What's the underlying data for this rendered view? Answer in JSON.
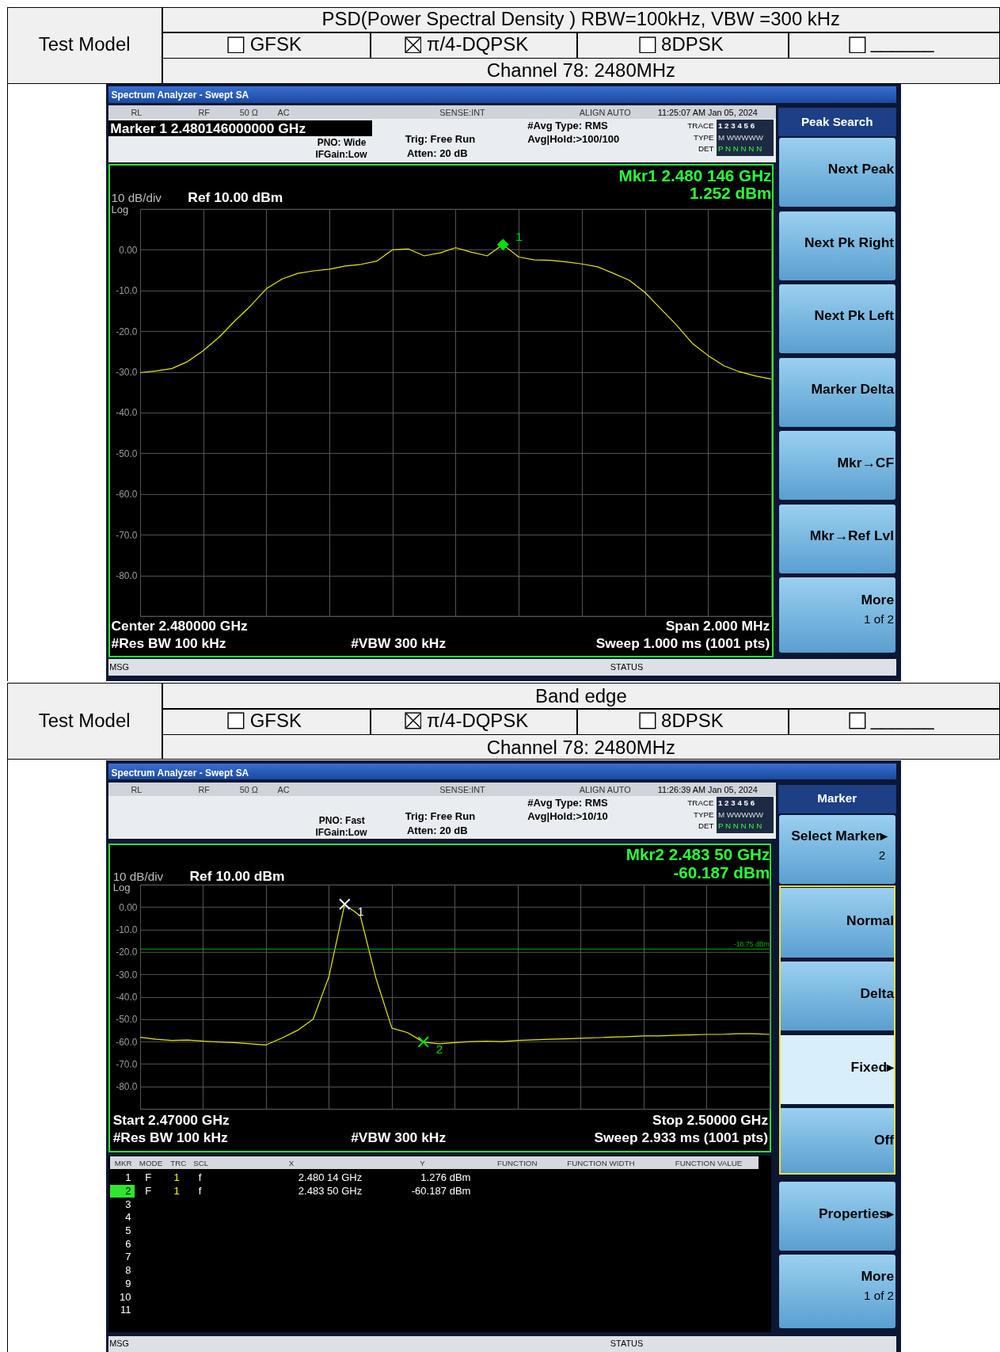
{
  "chart_data": [
    {
      "type": "line",
      "title": "PSD(Power Spectral Density ) RBW=100kHz, VBW =300 kHz",
      "categories": [
        null,
        null,
        null,
        null,
        null,
        null,
        null,
        null,
        null,
        null,
        null,
        null,
        null,
        null,
        null,
        null,
        null,
        null,
        null,
        null,
        null,
        null,
        null,
        null,
        null,
        null,
        null,
        null,
        null,
        null,
        null,
        null,
        null,
        null,
        null,
        null,
        null,
        null,
        null,
        null,
        null
      ],
      "series": [
        {
          "color": "#e8e800",
          "values": [
            -30.2,
            -29.8,
            -29.2,
            -27.5,
            -24.8,
            -21.5,
            -17.5,
            -13.8,
            -9.6,
            -7.2,
            -5.8,
            -5.2,
            -4.8,
            -4,
            -3.6,
            -2.8,
            0,
            0.2,
            -1.5,
            -0.8,
            0.5,
            -0.6,
            -1.5,
            1.25,
            -1.8,
            -2.5,
            -2.6,
            -3,
            -3.5,
            -4.2,
            -5.8,
            -7.5,
            -10.5,
            -14.5,
            -18.5,
            -23,
            -26,
            -28.5,
            -30,
            -31,
            -31.8
          ]
        },
        {
          "name": "1",
          "type": "scatter",
          "marker": "diamond",
          "color": "#00e000",
          "values": [
            null,
            null,
            null,
            null,
            null,
            null,
            null,
            null,
            null,
            null,
            null,
            null,
            null,
            null,
            null,
            null,
            null,
            null,
            null,
            null,
            null,
            null,
            null,
            1.252,
            null,
            null,
            null,
            null,
            null,
            null,
            null,
            null,
            null,
            null,
            null,
            null,
            null,
            null,
            null,
            null,
            null
          ]
        }
      ],
      "ylim": [
        -90,
        10
      ],
      "yticks": [
        {
          "value": -90,
          "label": null
        },
        {
          "value": -80,
          "label": "-80.0"
        },
        {
          "value": -70,
          "label": "-70.0"
        },
        {
          "value": -60,
          "label": "-60.0"
        },
        {
          "value": -50,
          "label": "-50.0"
        },
        {
          "value": -40,
          "label": "-40.0"
        },
        {
          "value": -30,
          "label": "-30.0"
        },
        {
          "value": -20,
          "label": "-20.0"
        },
        {
          "value": -10,
          "label": "-10.0"
        },
        {
          "value": 0,
          "label": "0.00"
        },
        {
          "value": 10,
          "label": null
        }
      ],
      "grid": true,
      "tick_labels": "y",
      "annotations": [
        "Test Model",
        "GFSK",
        "π/4-DQPSK",
        "8DPSK",
        "______",
        "Channel 78: 2480MHz",
        "Spectrum Analyzer - Swept SA",
        "RL",
        "RF",
        "50 Ω",
        "AC",
        "SENSE:INT",
        "ALIGN AUTO",
        "11:25:07 AM Jan 05, 2024",
        "Marker 1 2.480146000000 GHz",
        "PNO: Wide",
        "IFGain:Low",
        "Trig: Free Run",
        "Atten: 20 dB",
        "#Avg Type: RMS",
        "Avg|Hold:>100/100",
        "TRACE",
        "1 2 3 4 5 6",
        "TYPE",
        "M WWWWW",
        "DET",
        "P N N N N N",
        "Mkr1 2.480 146 GHz",
        "1.252 dBm",
        "10 dB/div",
        "Ref 10.00 dBm",
        "Log",
        "Center 2.480000 GHz",
        "Span 2.000 MHz",
        "#Res BW 100 kHz",
        "#VBW 300 kHz",
        "Sweep  1.000 ms (1001 pts)",
        "MSG",
        "STATUS",
        "Peak Search",
        "Next Peak",
        "Next Pk Right",
        "Next Pk Left",
        "Marker Delta",
        "Mkr→CF",
        "Mkr→Ref Lvl",
        "More",
        "1 of 2"
      ]
    },
    {
      "type": "line",
      "title": "Band edge",
      "categories": [
        null,
        null,
        null,
        null,
        null,
        null,
        null,
        null,
        null,
        null,
        null,
        null,
        null,
        null,
        null,
        null,
        null,
        null,
        null,
        null,
        null,
        null,
        null,
        null,
        null,
        null,
        null,
        null,
        null,
        null,
        null,
        null,
        null,
        null,
        null,
        null,
        null,
        null,
        null,
        null,
        null
      ],
      "series": [
        {
          "color": "#e8e800",
          "values": [
            -58.1,
            -59,
            -59.5,
            -59.3,
            -59.8,
            -60.2,
            -60.5,
            -61,
            -61.5,
            -58.5,
            -55,
            -50,
            -31,
            1.2,
            -4,
            -32,
            -54,
            -56,
            -60.2,
            -61,
            -60.5,
            -60,
            -59.8,
            -60,
            -59.5,
            -59.2,
            -59,
            -58.8,
            -58.5,
            -58.3,
            -58,
            -57.8,
            -57.5,
            -57.5,
            -57.2,
            -57,
            -56.8,
            -56.8,
            -56.5,
            -56.5,
            -56.8
          ]
        },
        {
          "name": "1",
          "type": "scatter",
          "marker": "cross",
          "color": "#ffffff",
          "values": [
            null,
            null,
            null,
            null,
            null,
            null,
            null,
            null,
            null,
            null,
            null,
            null,
            null,
            1.276,
            null,
            null,
            null,
            null,
            null,
            null,
            null,
            null,
            null,
            null,
            null,
            null,
            null,
            null,
            null,
            null,
            null,
            null,
            null,
            null,
            null,
            null,
            null,
            null,
            null,
            null,
            null
          ]
        },
        {
          "name": "2",
          "type": "scatter",
          "marker": "cross",
          "color": "#00e000",
          "values": [
            null,
            null,
            null,
            null,
            null,
            null,
            null,
            null,
            null,
            null,
            null,
            null,
            null,
            null,
            null,
            null,
            null,
            null,
            -60.187,
            null,
            null,
            null,
            null,
            null,
            null,
            null,
            null,
            null,
            null,
            null,
            null,
            null,
            null,
            null,
            null,
            null,
            null,
            null,
            null,
            null,
            null
          ]
        }
      ],
      "ylim": [
        -90,
        10
      ],
      "yticks": [
        {
          "value": -90,
          "label": null
        },
        {
          "value": -80,
          "label": "-80.0"
        },
        {
          "value": -70,
          "label": "-70.0"
        },
        {
          "value": -60,
          "label": "-60.0"
        },
        {
          "value": -50,
          "label": "-50.0"
        },
        {
          "value": -40,
          "label": "-40.0"
        },
        {
          "value": -30,
          "label": "-30.0"
        },
        {
          "value": -20,
          "label": "-20.0"
        },
        {
          "value": -10,
          "label": "-10.0"
        },
        {
          "value": 0,
          "label": "0.00"
        },
        {
          "value": 10,
          "label": null
        }
      ],
      "grid": true,
      "tick_labels": "y",
      "ref_lines": [
        {
          "axis": "y",
          "value": -18.75,
          "label": "-18.75 dBm",
          "color": "#00b000"
        }
      ],
      "annotations": [
        "Test Model",
        "GFSK",
        "π/4-DQPSK",
        "8DPSK",
        "______",
        "Channel 78: 2480MHz",
        "Spectrum Analyzer - Swept SA",
        "RL",
        "RF",
        "50 Ω",
        "AC",
        "SENSE:INT",
        "ALIGN AUTO",
        "11:26:39 AM Jan 05, 2024",
        "PNO: Fast",
        "IFGain:Low",
        "Trig: Free Run",
        "Atten: 20 dB",
        "#Avg Type: RMS",
        "Avg|Hold:>10/10",
        "TRACE",
        "1 2 3 4 5 6",
        "TYPE",
        "M WWWWW",
        "DET",
        "P N N N N N",
        "Mkr2 2.483 50 GHz",
        "-60.187 dBm",
        "10 dB/div",
        "Ref 10.00 dBm",
        "Log",
        "Start 2.47000 GHz",
        "Stop 2.50000 GHz",
        "#Res BW 100 kHz",
        "#VBW 300 kHz",
        "Sweep  2.933 ms (1001 pts)",
        "MKR",
        "MODE",
        "TRC",
        "SCL",
        "X",
        "Y",
        "FUNCTION",
        "FUNCTION WIDTH",
        "FUNCTION VALUE",
        "1",
        "F",
        "1",
        "f",
        "2.480 14 GHz",
        "1.276 dBm",
        "2",
        "F",
        "1",
        "f",
        "2.483 50 GHz",
        "-60.187 dBm",
        "3",
        "4",
        "5",
        "6",
        "7",
        "8",
        "9",
        "10",
        "11",
        "MSG",
        "STATUS",
        "Marker",
        "Select Marker▸",
        "2",
        "Normal",
        "Delta",
        "Fixed▸",
        "Off",
        "Properties▸",
        "More",
        "1 of 2"
      ]
    }
  ]
}
